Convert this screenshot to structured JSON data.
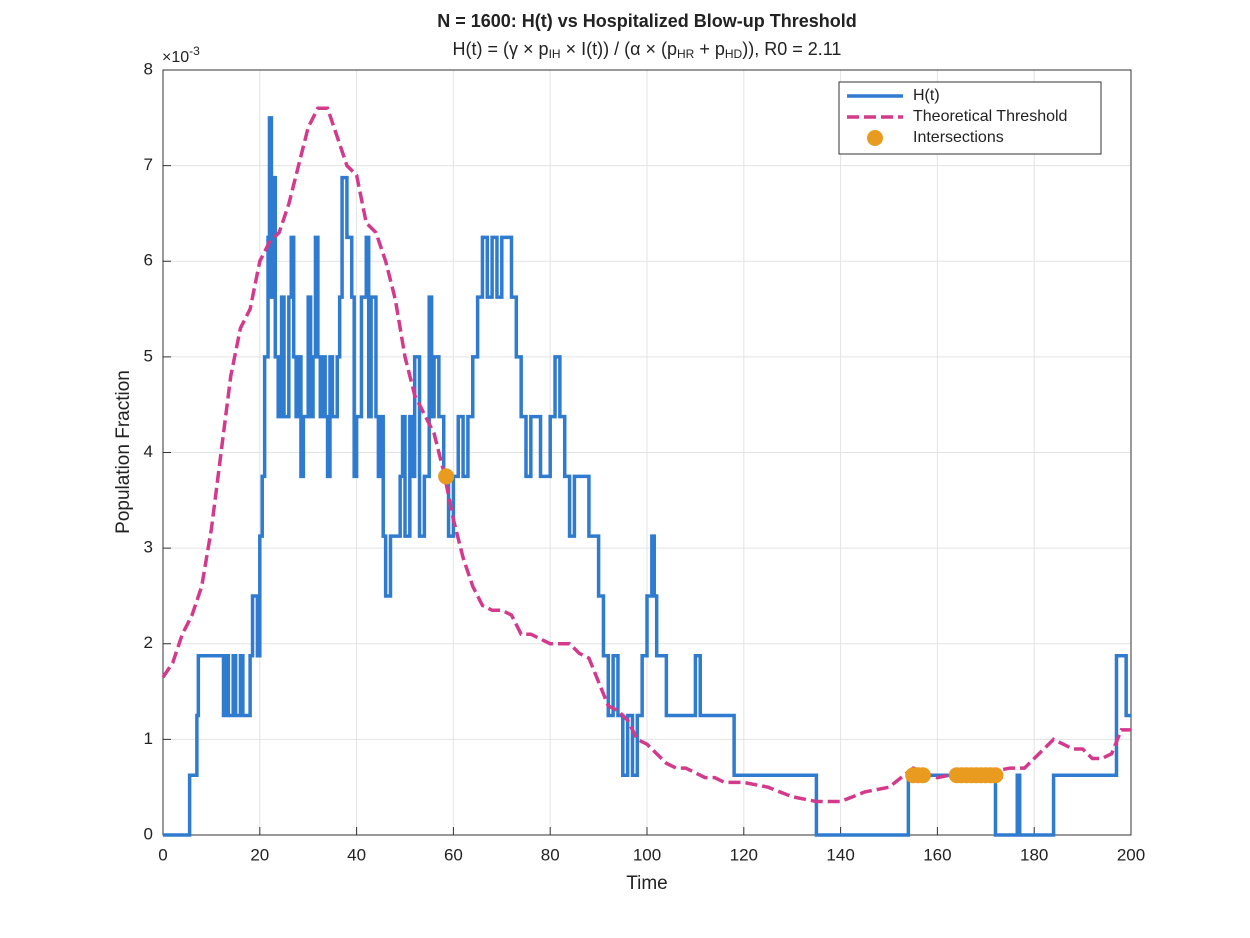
{
  "chart_data": {
    "type": "line",
    "title": "N = 1600: H(t) vs Hospitalized Blow-up Threshold",
    "subtitle_parts": [
      {
        "text": "H(t)  =  (γ  ×  p"
      },
      {
        "text": "IH",
        "sub": true
      },
      {
        "text": "  ×  I(t))  /  (α  ×  (p"
      },
      {
        "text": "HR",
        "sub": true
      },
      {
        "text": "  +  p"
      },
      {
        "text": "HD",
        "sub": true
      },
      {
        "text": ")),  R0  =  2.11"
      }
    ],
    "x_label": "Time",
    "y_label": "Population Fraction",
    "y_multiplier": {
      "base": "×10",
      "exponent": "-3"
    },
    "xlim": [
      0,
      200
    ],
    "xticks": [
      0,
      20,
      40,
      60,
      80,
      100,
      120,
      140,
      160,
      180,
      200
    ],
    "ylim": [
      0,
      8
    ],
    "yticks": [
      0,
      1,
      2,
      3,
      4,
      5,
      6,
      7,
      8
    ],
    "grid": true,
    "legend": "northeast",
    "series": [
      {
        "name": "H(t)",
        "color": "#2f7bd0",
        "style": "step",
        "x": [
          0,
          5.5,
          7,
          7.3,
          12.5,
          13,
          13.5,
          14.5,
          15,
          16,
          16.5,
          18,
          18.5,
          19.5,
          20,
          20.5,
          21,
          21.7,
          22,
          22.4,
          22.8,
          23.2,
          23.8,
          24.5,
          25,
          26,
          26.5,
          27,
          27.5,
          28,
          28.5,
          29,
          30,
          30.5,
          31,
          31.5,
          32,
          32.5,
          33,
          33.5,
          34,
          34.5,
          35,
          36,
          36.5,
          37,
          38,
          39,
          39.5,
          40,
          41,
          42,
          42.5,
          43,
          44,
          44.5,
          45,
          45.5,
          46,
          47,
          49,
          49.5,
          50,
          51,
          51.5,
          52,
          53,
          54,
          55,
          55.5,
          56,
          57,
          58,
          59,
          60,
          61,
          62,
          63,
          64,
          65,
          66,
          67,
          68,
          69,
          70,
          72,
          73,
          74,
          75,
          76,
          78,
          80,
          81,
          82,
          83,
          84,
          85,
          88,
          90,
          91,
          92,
          93,
          94,
          95,
          96,
          97,
          98,
          99,
          100,
          101,
          101.5,
          102,
          104,
          110,
          111,
          118,
          135,
          154,
          172,
          176.5,
          177,
          184,
          197,
          199,
          200
        ],
        "values": [
          0,
          0.625,
          1.25,
          1.875,
          1.25,
          1.875,
          1.25,
          1.875,
          1.25,
          1.875,
          1.25,
          1.875,
          2.5,
          1.875,
          3.125,
          3.75,
          5,
          6.25,
          7.5,
          5.625,
          6.875,
          5,
          4.375,
          5.625,
          4.375,
          5.625,
          6.25,
          5,
          4.375,
          5,
          3.75,
          4.375,
          5.625,
          4.375,
          5,
          6.25,
          5,
          4.375,
          5,
          4.375,
          3.75,
          5,
          4.375,
          5,
          5.625,
          6.875,
          6.25,
          5.625,
          3.75,
          4.375,
          5.625,
          6.25,
          4.375,
          5.625,
          4.375,
          3.75,
          4.375,
          3.125,
          2.5,
          3.125,
          3.75,
          4.375,
          3.125,
          4.375,
          3.75,
          5,
          3.125,
          3.75,
          5.625,
          4.375,
          5,
          4.375,
          3.75,
          3.125,
          3.75,
          4.375,
          3.75,
          4.375,
          5,
          5.625,
          6.25,
          5.625,
          6.25,
          5.625,
          6.25,
          5.625,
          5,
          4.375,
          3.75,
          4.375,
          3.75,
          4.375,
          5,
          4.375,
          3.75,
          3.125,
          3.75,
          3.125,
          2.5,
          1.875,
          1.25,
          1.875,
          1.25,
          0.625,
          1.25,
          0.625,
          1.25,
          1.875,
          2.5,
          3.125,
          2.5,
          1.875,
          1.25,
          1.875,
          1.25,
          0.625,
          0,
          0.625,
          0,
          0.625,
          0,
          0.625,
          1.875,
          1.25,
          1.25
        ]
      },
      {
        "name": "Theoretical Threshold",
        "color": "#d33a8c",
        "style": "dashed",
        "x": [
          0,
          2,
          4,
          6,
          8,
          10,
          12,
          14,
          16,
          18,
          20,
          22,
          24,
          26,
          28,
          30,
          32,
          34,
          36,
          38,
          40,
          42,
          44,
          46,
          48,
          50,
          52,
          54,
          56,
          58,
          60,
          62,
          64,
          66,
          68,
          70,
          72,
          74,
          76,
          78,
          80,
          82,
          84,
          86,
          88,
          90,
          92,
          94,
          96,
          98,
          100,
          102,
          104,
          106,
          108,
          110,
          112,
          114,
          116,
          118,
          120,
          125,
          130,
          135,
          140,
          145,
          150,
          155,
          160,
          165,
          170,
          175,
          178,
          180,
          182,
          184,
          186,
          188,
          190,
          192,
          194,
          196,
          198,
          200
        ],
        "values": [
          1.65,
          1.8,
          2.1,
          2.3,
          2.6,
          3.2,
          4.0,
          4.8,
          5.3,
          5.5,
          6.0,
          6.2,
          6.3,
          6.6,
          7.0,
          7.4,
          7.6,
          7.6,
          7.3,
          7.0,
          6.9,
          6.4,
          6.3,
          6.0,
          5.6,
          5.0,
          4.6,
          4.4,
          4.2,
          3.8,
          3.3,
          2.9,
          2.6,
          2.4,
          2.35,
          2.35,
          2.3,
          2.1,
          2.1,
          2.05,
          2.0,
          2.0,
          2.0,
          1.9,
          1.85,
          1.6,
          1.35,
          1.3,
          1.2,
          1.0,
          0.95,
          0.85,
          0.75,
          0.7,
          0.7,
          0.65,
          0.6,
          0.6,
          0.55,
          0.55,
          0.55,
          0.5,
          0.4,
          0.35,
          0.35,
          0.45,
          0.5,
          0.7,
          0.6,
          0.65,
          0.65,
          0.7,
          0.7,
          0.8,
          0.9,
          1.0,
          0.95,
          0.9,
          0.9,
          0.8,
          0.8,
          0.85,
          1.1,
          1.1
        ]
      },
      {
        "name": "Intersections",
        "color": "#e89b1f",
        "style": "markers",
        "x": [
          58.5,
          155,
          156,
          157,
          164,
          165,
          166,
          167,
          168,
          169,
          170,
          171,
          172
        ],
        "values": [
          3.75,
          0.625,
          0.625,
          0.625,
          0.625,
          0.625,
          0.625,
          0.625,
          0.625,
          0.625,
          0.625,
          0.625,
          0.625
        ]
      }
    ]
  }
}
